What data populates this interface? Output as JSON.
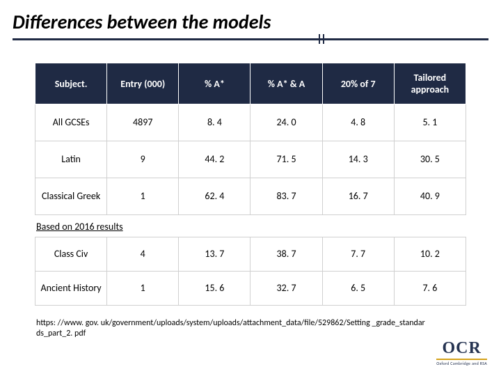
{
  "title": "Differences between the models",
  "table": {
    "columns": [
      "Subject.",
      "Entry (000)",
      "% A*",
      "% A* & A",
      "20% of 7",
      "Tailored approach"
    ],
    "rows_top": [
      [
        "All GCSEs",
        "4897",
        "8. 4",
        "24. 0",
        "4. 8",
        "5. 1"
      ],
      [
        "Latin",
        "9",
        "44. 2",
        "71. 5",
        "14. 3",
        "30. 5"
      ],
      [
        "Classical Greek",
        "1",
        "62. 4",
        "83. 7",
        "16. 7",
        "40. 9"
      ]
    ],
    "note": "Based on 2016 results",
    "rows_bottom": [
      [
        "Class Civ",
        "4",
        "13. 7",
        "38. 7",
        "7. 7",
        "10. 2"
      ],
      [
        "Ancient History",
        "1",
        "15. 6",
        "32. 7",
        "6. 5",
        "7. 6"
      ]
    ],
    "header_bg": "#1f2a44",
    "header_fg": "#ffffff",
    "cell_border": "#d0d0d0",
    "fontsize_header": 14,
    "fontsize_cell": 14
  },
  "source": "https: //www. gov. uk/government/uploads/system/uploads/attachment_data/file/529862/Setting _grade_standards_part_2. pdf",
  "logo": {
    "text": "OCR",
    "subtitle": "Oxford Cambridge and RSA",
    "main_color": "#263452",
    "accent_color": "#d4a017"
  }
}
